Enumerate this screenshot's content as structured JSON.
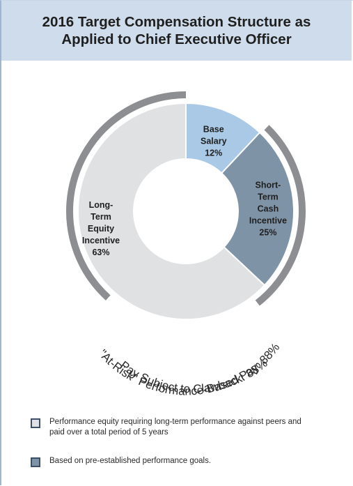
{
  "header": {
    "title_line1": "2016 Target Compensation Structure as",
    "title_line2": "Applied to Chief Executive Officer"
  },
  "chart_data": {
    "type": "pie",
    "title": "2016 Target Compensation Structure as Applied to Chief Executive Officer",
    "slices": [
      {
        "label_lines": [
          "Base",
          "Salary",
          "12%"
        ],
        "label": "Base Salary",
        "value": 12,
        "color": "#a9c9e6"
      },
      {
        "label_lines": [
          "Short-",
          "Term",
          "Cash",
          "Incentive",
          "25%"
        ],
        "label": "Short-Term Cash Incentive",
        "value": 25,
        "color": "#7f93a7"
      },
      {
        "label_lines": [
          "Long-",
          "Term",
          "Equity",
          "Incentive",
          "63%"
        ],
        "label": "Long-Term Equity Incentive",
        "value": 63,
        "color": "#dfe1e3"
      }
    ],
    "arc_labels": [
      "\"At-Risk\" Performance-Based Pay: 88%",
      "Pay Subject to Clawback: 88%"
    ],
    "ring_color": "#8c8e91"
  },
  "legend": [
    {
      "swatch_color": "#dfe1e3",
      "text": "Performance equity requiring long-term performance against peers and paid over a total period of 5 years"
    },
    {
      "swatch_color": "#7f93a7",
      "text": "Based on pre-established performance goals."
    }
  ]
}
